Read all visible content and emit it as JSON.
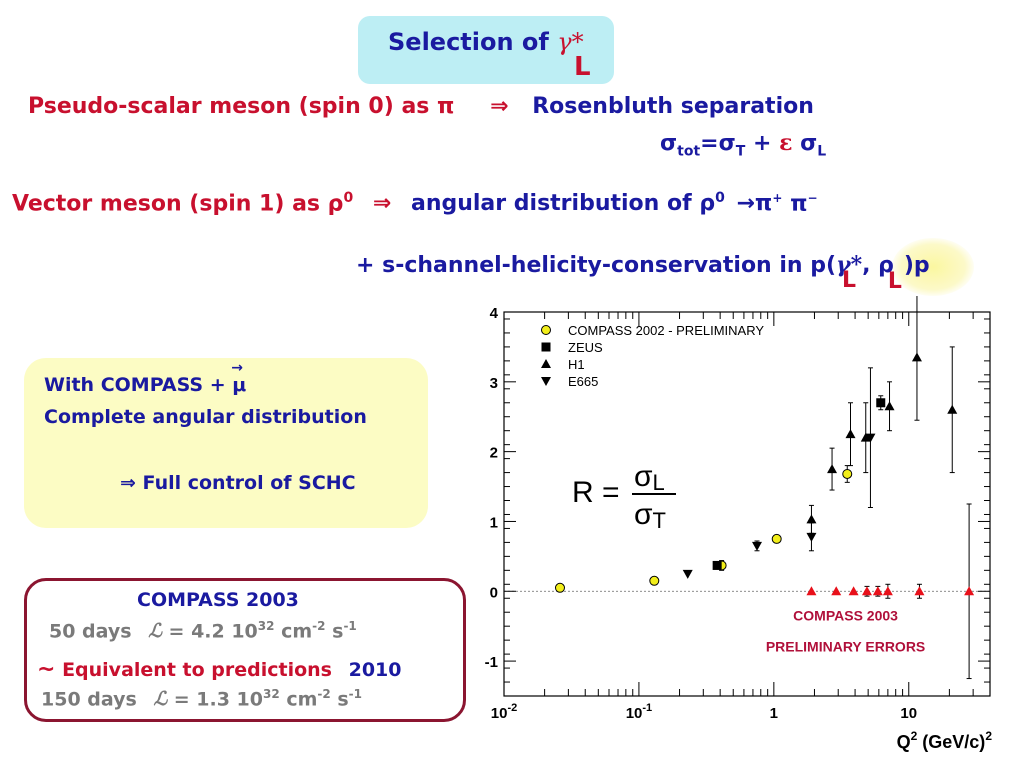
{
  "title": {
    "prefix": "Selection of",
    "gamma": "γ*",
    "sub": "L"
  },
  "line1": {
    "left": "Pseudo-scalar meson (spin 0) as π",
    "arrow": "⇒",
    "right": "Rosenbluth separation"
  },
  "formula": {
    "sigma_tot": "σ",
    "tot_sub": "tot",
    "eq": "=σ",
    "t_sub": "T",
    "plus": " + ",
    "eps": "ε",
    "sigma_l": " σ",
    "l_sub": "L"
  },
  "line2": {
    "left": "Vector meson (spin 1) as ρ",
    "zero": "0",
    "arrow": "⇒",
    "right": "angular distribution of ρ",
    "zero2": "0",
    "decay": "→π",
    "plus_sup": "+",
    "pi": " π",
    "minus_sup": "−"
  },
  "schc": {
    "text": "+ s-channel-helicity-conservation in p(",
    "gamma": "γ*",
    "comma": ", ρ",
    "close": ")p",
    "sub1": "L",
    "sub2": "L"
  },
  "compass_box": {
    "line1_a": "With COMPASS +",
    "mu": "μ",
    "mu_arrow": "→",
    "line2": "Complete angular distribution",
    "line3_arrow": "⇒",
    "line3": "Full control of SCHC"
  },
  "compass2003_box": {
    "title": "COMPASS 2003",
    "row1_days": "50 days",
    "row1_L": "ℒ",
    "row1_val": "= 4.2 10",
    "row1_exp": "32",
    "row1_unit": " cm",
    "row1_cm_exp": "-2",
    "row1_s": " s",
    "row1_s_exp": "-1",
    "row2_tilde": "~",
    "row2_text": "Equivalent to predictions",
    "row2_year": "2010",
    "row3_days": "150 days",
    "row3_L": "ℒ",
    "row3_val": "= 1.3 10",
    "row3_exp": "32",
    "row3_unit": " cm",
    "row3_cm_exp": "-2",
    "row3_s": " s",
    "row3_s_exp": "-1"
  },
  "colors": {
    "red": "#c8102e",
    "blue": "#1a1aa0",
    "title_bg": "#bdeef4",
    "box_bg": "#fcfcc4",
    "box_border": "#8b1530"
  },
  "chart_data": {
    "type": "scatter",
    "xscale": "log",
    "xlim": [
      0.01,
      40
    ],
    "ylim": [
      -1.5,
      4
    ],
    "xlabel": "Q",
    "xlabel_sup": "2",
    "xlabel_unit": " (GeV/c)",
    "xlabel_unit_sup": "2",
    "x_ticks": [
      {
        "v": 0.01,
        "base": "10",
        "exp": "-2"
      },
      {
        "v": 0.1,
        "base": "10",
        "exp": "-1"
      },
      {
        "v": 1,
        "base": "1",
        "exp": ""
      },
      {
        "v": 10,
        "base": "10",
        "exp": ""
      }
    ],
    "y_ticks": [
      -1,
      0,
      1,
      2,
      3,
      4
    ],
    "formula": {
      "r": "R =",
      "num": "σ",
      "num_sub": "L",
      "den": "σ",
      "den_sub": "T"
    },
    "annotations": [
      "COMPASS 2003",
      "PRELIMINARY   ERRORS"
    ],
    "legend": {
      "position": "top-left"
    },
    "series": [
      {
        "name": "COMPASS 2002 - PRELIMINARY",
        "marker": "circle",
        "color": "#f2ee1a",
        "points": [
          [
            0.026,
            0.05,
            0
          ],
          [
            0.13,
            0.15,
            0
          ],
          [
            0.41,
            0.37,
            0.07
          ],
          [
            1.05,
            0.75,
            0
          ],
          [
            3.5,
            1.68,
            0.12
          ]
        ]
      },
      {
        "name": "ZEUS",
        "marker": "square",
        "color": "#000000",
        "points": [
          [
            0.38,
            0.37,
            0.05
          ],
          [
            6.2,
            2.7,
            0.1
          ]
        ]
      },
      {
        "name": "H1",
        "marker": "triangle-up",
        "color": "#000000",
        "points": [
          [
            1.9,
            1.03,
            0.2
          ],
          [
            2.7,
            1.75,
            0.3
          ],
          [
            3.7,
            2.25,
            0.45
          ],
          [
            4.8,
            2.2,
            0.5
          ],
          [
            7.2,
            2.65,
            0.35
          ],
          [
            11.5,
            3.35,
            0.9
          ],
          [
            21,
            2.6,
            0.9
          ]
        ]
      },
      {
        "name": "E665",
        "marker": "triangle-down",
        "color": "#000000",
        "points": [
          [
            0.23,
            0.25,
            0
          ],
          [
            0.75,
            0.65,
            0.07
          ],
          [
            1.9,
            0.78,
            0.2
          ],
          [
            5.2,
            2.2,
            1.0
          ]
        ]
      },
      {
        "name": "",
        "marker": "triangle-up",
        "color": "#e8101a",
        "points": [
          [
            1.9,
            0,
            0
          ],
          [
            2.9,
            0,
            0
          ],
          [
            3.9,
            0,
            0
          ],
          [
            4.9,
            0,
            0.07
          ],
          [
            5.9,
            0,
            0.07
          ],
          [
            7.0,
            0,
            0.1
          ],
          [
            12.0,
            0,
            0.1
          ],
          [
            28.0,
            0,
            1.25
          ]
        ]
      }
    ]
  }
}
